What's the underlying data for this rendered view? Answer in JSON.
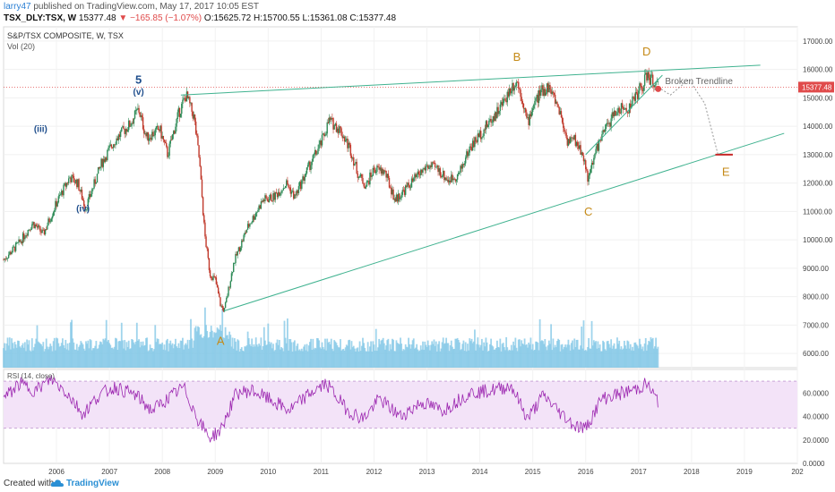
{
  "header": {
    "user": "larry47",
    "published": "published on TradingView.com, May 17, 2017 10:05 EST",
    "symbol": "TSX_DLY:TSX, W",
    "last": "15377.48",
    "change": "▼ −165.85 (−1.07%)",
    "open_label": "O:",
    "open": "15625.72",
    "high_label": "H:",
    "high": "15700.55",
    "low_label": "L:",
    "low": "15361.08",
    "close_label": "C:",
    "close": "15377.48"
  },
  "legend": {
    "title": "S&P/TSX COMPOSITE, W, TSX",
    "vol": "Vol (20)",
    "rsi": "RSI (14, close)"
  },
  "footer": {
    "created": "Created with",
    "brand": "TradingView"
  },
  "colors": {
    "up": "#26a69a",
    "down": "#ef5350",
    "candle_up": "#2e8b57",
    "candle_down": "#c0392b",
    "trend": "#3fb28f",
    "volume": "#7fc6e6",
    "rsi_line": "#9c27b0",
    "rsi_band": "#f3e3f8",
    "wave_major": "#c58a17",
    "wave_minor": "#1f4e8c",
    "last_price": "#e04b4b"
  },
  "chart_data": {
    "type": "candlestick",
    "price_axis": {
      "min": 5500,
      "max": 17500,
      "ticks": [
        6000,
        7000,
        8000,
        9000,
        10000,
        11000,
        12000,
        13000,
        14000,
        15000,
        16000,
        17000
      ]
    },
    "time_axis": {
      "start": 2005.0,
      "end": 2020.0,
      "ticks": [
        "2006",
        "2007",
        "2008",
        "2009",
        "2010",
        "2011",
        "2012",
        "2013",
        "2014",
        "2015",
        "2016",
        "2017",
        "2018",
        "2019",
        "202"
      ]
    },
    "last_price_label": "15377.48",
    "price_path": [
      [
        2005.0,
        9300
      ],
      [
        2005.3,
        9900
      ],
      [
        2005.55,
        10600
      ],
      [
        2005.75,
        10200
      ],
      [
        2006.0,
        11300
      ],
      [
        2006.25,
        12200
      ],
      [
        2006.4,
        12000
      ],
      [
        2006.55,
        11100
      ],
      [
        2006.85,
        12700
      ],
      [
        2007.1,
        13500
      ],
      [
        2007.4,
        14100
      ],
      [
        2007.55,
        14600
      ],
      [
        2007.7,
        13600
      ],
      [
        2007.95,
        13900
      ],
      [
        2008.1,
        13000
      ],
      [
        2008.3,
        14400
      ],
      [
        2008.45,
        15100
      ],
      [
        2008.6,
        14300
      ],
      [
        2008.7,
        12800
      ],
      [
        2008.8,
        10200
      ],
      [
        2008.9,
        8800
      ],
      [
        2009.0,
        8600
      ],
      [
        2009.1,
        7700
      ],
      [
        2009.17,
        7500
      ],
      [
        2009.35,
        9200
      ],
      [
        2009.6,
        10400
      ],
      [
        2009.9,
        11400
      ],
      [
        2010.1,
        11500
      ],
      [
        2010.35,
        12000
      ],
      [
        2010.5,
        11500
      ],
      [
        2010.75,
        12500
      ],
      [
        2011.0,
        13400
      ],
      [
        2011.15,
        14200
      ],
      [
        2011.35,
        13900
      ],
      [
        2011.55,
        13200
      ],
      [
        2011.7,
        12300
      ],
      [
        2011.85,
        11900
      ],
      [
        2012.0,
        12500
      ],
      [
        2012.2,
        12400
      ],
      [
        2012.4,
        11400
      ],
      [
        2012.6,
        11800
      ],
      [
        2012.8,
        12200
      ],
      [
        2013.0,
        12600
      ],
      [
        2013.2,
        12500
      ],
      [
        2013.4,
        12100
      ],
      [
        2013.6,
        12300
      ],
      [
        2013.8,
        13200
      ],
      [
        2014.0,
        13700
      ],
      [
        2014.2,
        14200
      ],
      [
        2014.4,
        14700
      ],
      [
        2014.6,
        15400
      ],
      [
        2014.7,
        15600
      ],
      [
        2014.8,
        15000
      ],
      [
        2014.9,
        14100
      ],
      [
        2015.0,
        14700
      ],
      [
        2015.15,
        15200
      ],
      [
        2015.3,
        15400
      ],
      [
        2015.5,
        14600
      ],
      [
        2015.65,
        13500
      ],
      [
        2015.8,
        13500
      ],
      [
        2015.95,
        13000
      ],
      [
        2016.05,
        12100
      ],
      [
        2016.2,
        13200
      ],
      [
        2016.4,
        14000
      ],
      [
        2016.6,
        14600
      ],
      [
        2016.8,
        14600
      ],
      [
        2016.95,
        15100
      ],
      [
        2017.1,
        15500
      ],
      [
        2017.15,
        15800
      ],
      [
        2017.25,
        15600
      ],
      [
        2017.37,
        15377
      ]
    ],
    "volume_axis": {
      "baseline_price": 5500
    },
    "rsi": {
      "ticks": [
        "20.0000",
        "40.0000",
        "60.0000",
        "0.0000"
      ],
      "tick_values": [
        20,
        40,
        60,
        0
      ],
      "bands": [
        30,
        70
      ],
      "path": [
        [
          2005.0,
          55
        ],
        [
          2005.3,
          68
        ],
        [
          2005.6,
          62
        ],
        [
          2005.9,
          72
        ],
        [
          2006.2,
          60
        ],
        [
          2006.5,
          42
        ],
        [
          2006.8,
          58
        ],
        [
          2007.1,
          65
        ],
        [
          2007.5,
          58
        ],
        [
          2007.8,
          45
        ],
        [
          2008.1,
          55
        ],
        [
          2008.4,
          65
        ],
        [
          2008.7,
          35
        ],
        [
          2008.9,
          22
        ],
        [
          2009.1,
          28
        ],
        [
          2009.4,
          60
        ],
        [
          2009.7,
          62
        ],
        [
          2010.0,
          55
        ],
        [
          2010.4,
          45
        ],
        [
          2010.8,
          60
        ],
        [
          2011.1,
          68
        ],
        [
          2011.5,
          45
        ],
        [
          2011.8,
          38
        ],
        [
          2012.1,
          55
        ],
        [
          2012.5,
          40
        ],
        [
          2012.9,
          52
        ],
        [
          2013.3,
          45
        ],
        [
          2013.8,
          60
        ],
        [
          2014.2,
          62
        ],
        [
          2014.6,
          66
        ],
        [
          2014.9,
          38
        ],
        [
          2015.2,
          58
        ],
        [
          2015.5,
          44
        ],
        [
          2015.8,
          32
        ],
        [
          2016.0,
          30
        ],
        [
          2016.3,
          55
        ],
        [
          2016.7,
          60
        ],
        [
          2017.0,
          64
        ],
        [
          2017.15,
          68
        ],
        [
          2017.37,
          52
        ]
      ]
    },
    "trendlines": [
      {
        "name": "upper",
        "from": [
          2008.35,
          15100
        ],
        "to": [
          2019.3,
          16150
        ]
      },
      {
        "name": "lower",
        "from": [
          2009.17,
          7500
        ],
        "to": [
          2019.75,
          13750
        ]
      },
      {
        "name": "broken",
        "from": [
          2016.0,
          13000
        ],
        "to": [
          2017.45,
          15800
        ]
      }
    ],
    "projection": {
      "path": [
        [
          2017.37,
          15377
        ],
        [
          2017.6,
          15100
        ],
        [
          2017.95,
          15650
        ],
        [
          2018.25,
          14800
        ],
        [
          2018.5,
          13000
        ]
      ],
      "target": 13000,
      "target_range": [
        2018.45,
        2018.78
      ]
    },
    "wave_labels": [
      {
        "text": "5",
        "x": 2007.55,
        "y": 15500,
        "style": "minor"
      },
      {
        "text": "(v)",
        "x": 2007.55,
        "y": 15100,
        "style": "minor"
      },
      {
        "text": "(iii)",
        "x": 2005.7,
        "y": 13800,
        "style": "minor"
      },
      {
        "text": "(iv)",
        "x": 2006.5,
        "y": 11000,
        "style": "minor"
      },
      {
        "text": "A",
        "x": 2009.1,
        "y": 6300,
        "style": "major"
      },
      {
        "text": "B",
        "x": 2014.7,
        "y": 16300,
        "style": "major"
      },
      {
        "text": "C",
        "x": 2016.05,
        "y": 10850,
        "style": "major"
      },
      {
        "text": "D",
        "x": 2017.15,
        "y": 16500,
        "style": "major"
      },
      {
        "text": "E",
        "x": 2018.65,
        "y": 12250,
        "style": "major"
      }
    ],
    "annotations": [
      {
        "text": "Broken Trendline",
        "x": 2017.5,
        "y": 15480
      }
    ]
  }
}
